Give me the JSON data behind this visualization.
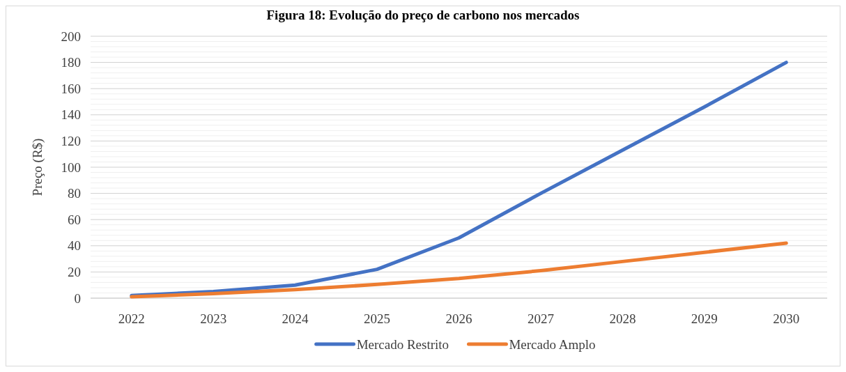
{
  "chart_data": {
    "type": "line",
    "title": "Figura 18: Evolução do preço de carbono nos mercados",
    "ylabel": "Preço (R$)",
    "categories": [
      "2022",
      "2023",
      "2024",
      "2025",
      "2026",
      "2027",
      "2028",
      "2029",
      "2030"
    ],
    "series": [
      {
        "name": "Mercado Restrito",
        "color": "#4472c4",
        "values": [
          2,
          5,
          10,
          22,
          46,
          80,
          113,
          146,
          180
        ]
      },
      {
        "name": "Mercado Amplo",
        "color": "#ed7d31",
        "values": [
          1,
          3.5,
          6.5,
          10.5,
          15,
          21,
          28,
          35,
          42
        ]
      }
    ],
    "ylim": [
      0,
      200
    ],
    "yticks": [
      0,
      {
        "value": 4,
        "label": null
      },
      {
        "value": 8,
        "label": null
      },
      {
        "value": 12,
        "label": null
      },
      {
        "value": 16,
        "label": null
      },
      20,
      {
        "value": 24,
        "label": null
      },
      {
        "value": 28,
        "label": null
      },
      {
        "value": 32,
        "label": null
      },
      {
        "value": 36,
        "label": null
      },
      40,
      {
        "value": 44,
        "label": null
      },
      {
        "value": 48,
        "label": null
      },
      {
        "value": 52,
        "label": null
      },
      {
        "value": 56,
        "label": null
      },
      60,
      {
        "value": 64,
        "label": null
      },
      {
        "value": 68,
        "label": null
      },
      {
        "value": 72,
        "label": null
      },
      {
        "value": 76,
        "label": null
      },
      80,
      {
        "value": 84,
        "label": null
      },
      {
        "value": 88,
        "label": null
      },
      {
        "value": 92,
        "label": null
      },
      {
        "value": 96,
        "label": null
      },
      100,
      {
        "value": 104,
        "label": null
      },
      {
        "value": 108,
        "label": null
      },
      {
        "value": 112,
        "label": null
      },
      {
        "value": 116,
        "label": null
      },
      120,
      {
        "value": 124,
        "label": null
      },
      {
        "value": 128,
        "label": null
      },
      {
        "value": 132,
        "label": null
      },
      {
        "value": 136,
        "label": null
      },
      140,
      {
        "value": 144,
        "label": null
      },
      {
        "value": 148,
        "label": null
      },
      {
        "value": 152,
        "label": null
      },
      {
        "value": 156,
        "label": null
      },
      160,
      {
        "value": 164,
        "label": null
      },
      {
        "value": 168,
        "label": null
      },
      {
        "value": 172,
        "label": null
      },
      {
        "value": 176,
        "label": null
      },
      180,
      {
        "value": 184,
        "label": null
      },
      {
        "value": 188,
        "label": null
      },
      {
        "value": 192,
        "label": null
      },
      {
        "value": 196,
        "label": null
      },
      200
    ],
    "grid": true,
    "legend": "bottom",
    "marker": "none",
    "line_style": "solid"
  }
}
